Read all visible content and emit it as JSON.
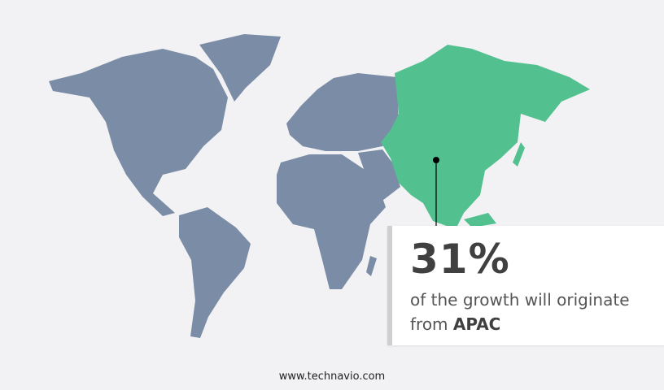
{
  "colors": {
    "background": "#f2f2f4",
    "map_default": "#7a8ca6",
    "highlight_region": "#52c08f"
  },
  "map": {
    "highlighted_region": "APAC"
  },
  "callout": {
    "value": "31%",
    "text_prefix": "of the growth will originate",
    "text_from": "from",
    "region": "APAC"
  },
  "footer": {
    "url": "www.technavio.com"
  }
}
